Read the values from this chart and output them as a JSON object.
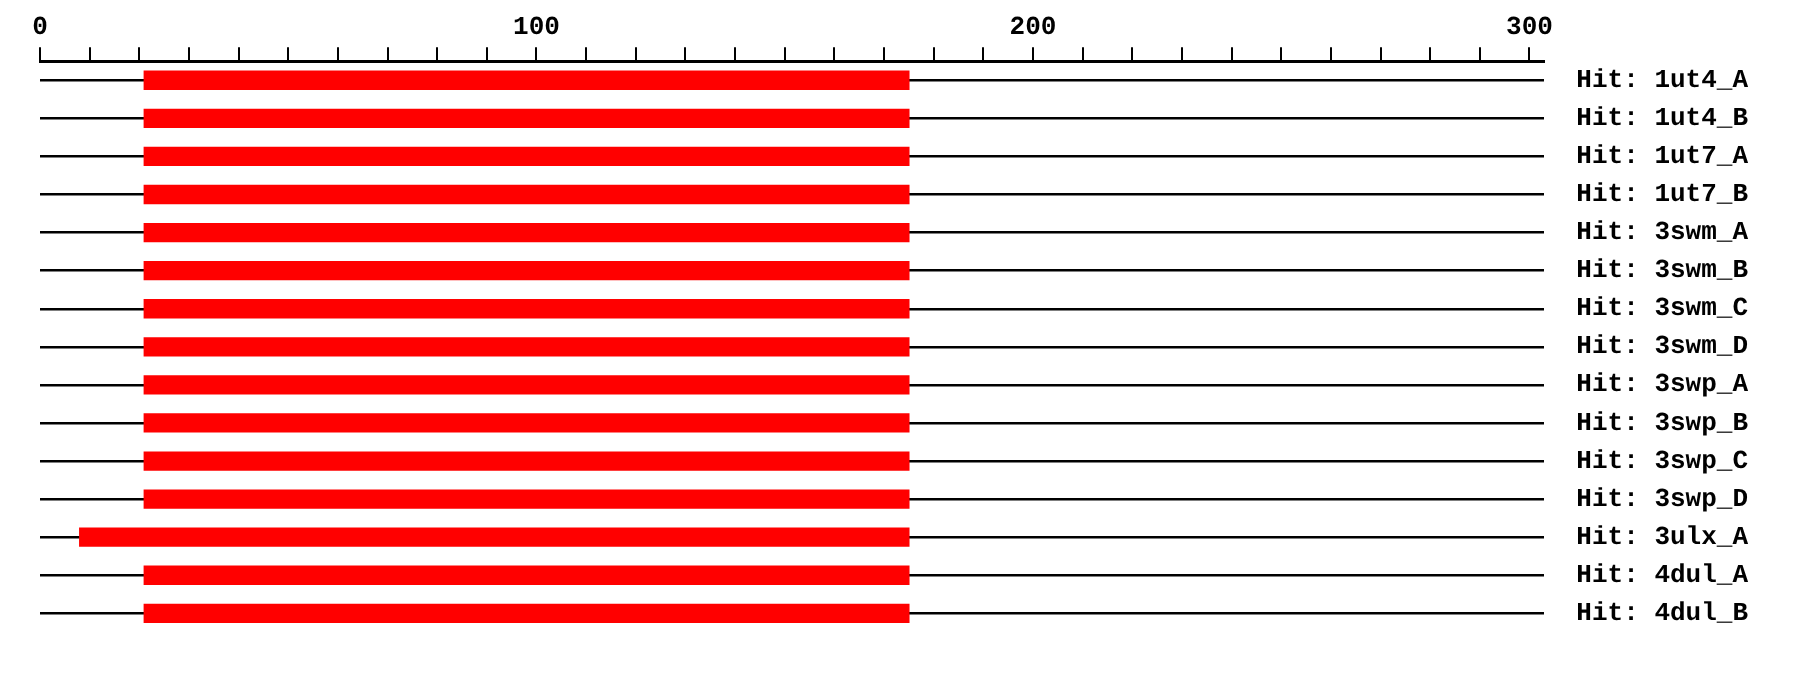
{
  "chart_data": {
    "type": "bar",
    "orientation": "horizontal",
    "grid": "y",
    "categories": [
      "Hit: 1ut4_A",
      "Hit: 1ut4_B",
      "Hit: 1ut7_A",
      "Hit: 1ut7_B",
      "Hit: 3swm_A",
      "Hit: 3swm_B",
      "Hit: 3swm_C",
      "Hit: 3swm_D",
      "Hit: 3swp_A",
      "Hit: 3swp_B",
      "Hit: 3swp_C",
      "Hit: 3swp_D",
      "Hit: 3ulx_A",
      "Hit: 4dul_A",
      "Hit: 4dul_B"
    ],
    "base": [
      21,
      21,
      21,
      21,
      21,
      21,
      21,
      21,
      21,
      21,
      21,
      21,
      8,
      21,
      21
    ],
    "values": [
      154,
      154,
      154,
      154,
      154,
      154,
      154,
      154,
      154,
      154,
      154,
      154,
      167,
      154,
      154
    ],
    "color": "#ff0000",
    "xlim": [
      0,
      303
    ],
    "xticks": [
      0,
      {
        "value": 10,
        "label": null
      },
      {
        "value": 20,
        "label": null
      },
      {
        "value": 30,
        "label": null
      },
      {
        "value": 40,
        "label": null
      },
      {
        "value": 50,
        "label": null
      },
      {
        "value": 60,
        "label": null
      },
      {
        "value": 70,
        "label": null
      },
      {
        "value": 80,
        "label": null
      },
      {
        "value": 90,
        "label": null
      },
      100,
      {
        "value": 110,
        "label": null
      },
      {
        "value": 120,
        "label": null
      },
      {
        "value": 130,
        "label": null
      },
      {
        "value": 140,
        "label": null
      },
      {
        "value": 150,
        "label": null
      },
      {
        "value": 160,
        "label": null
      },
      {
        "value": 170,
        "label": null
      },
      {
        "value": 180,
        "label": null
      },
      {
        "value": 190,
        "label": null
      },
      200,
      {
        "value": 210,
        "label": null
      },
      {
        "value": 220,
        "label": null
      },
      {
        "value": 230,
        "label": null
      },
      {
        "value": 240,
        "label": null
      },
      {
        "value": 250,
        "label": null
      },
      {
        "value": 260,
        "label": null
      },
      {
        "value": 270,
        "label": null
      },
      {
        "value": 280,
        "label": null
      },
      {
        "value": 290,
        "label": null
      },
      300
    ]
  }
}
